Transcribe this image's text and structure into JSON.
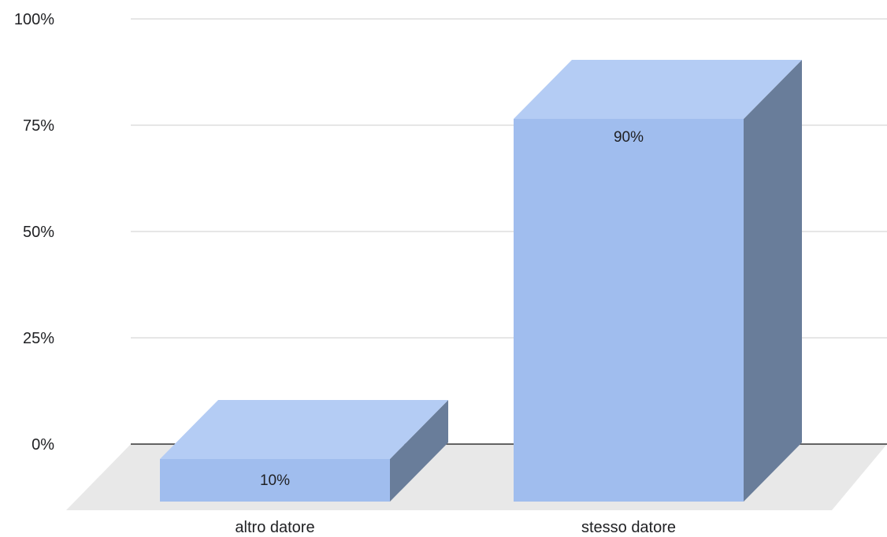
{
  "chart_data": {
    "type": "bar",
    "style": "3d",
    "categories": [
      "altro datore",
      "stesso datore"
    ],
    "values": [
      10,
      90
    ],
    "data_labels": [
      "10%",
      "90%"
    ],
    "ylim": [
      0,
      100
    ],
    "yticks": [
      0,
      25,
      50,
      75,
      100
    ],
    "ytick_labels": [
      "0%",
      "25%",
      "50%",
      "75%",
      "100%"
    ],
    "grid": true,
    "legend": "none",
    "colors": {
      "bar_front": "#a0bdee",
      "bar_top": "#b4ccf4",
      "bar_side": "#697d9a",
      "floor": "#e8e8e8",
      "grid": "#cccccc",
      "baseline": "#333333"
    }
  }
}
